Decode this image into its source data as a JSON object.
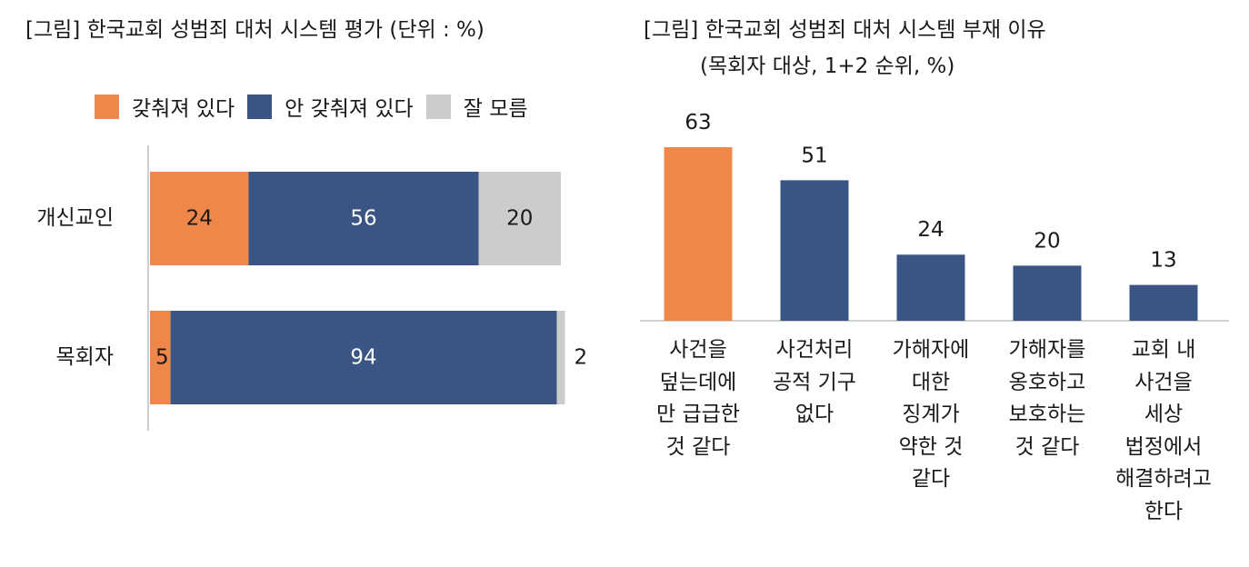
{
  "left_chart": {
    "title": "[그림] 한국교회 성범죄 대처 시스템 평가 (단위 : %)",
    "legend": [
      {
        "label": "갖춰져 있다",
        "color": "#F0874A"
      },
      {
        "label": "안 갖춰져 있다",
        "color": "#3A5584"
      },
      {
        "label": "잘 모름",
        "color": "#CCCCCC"
      }
    ]
  },
  "right_chart": {
    "title": "[그림] 한국교회 성범죄 대처 시스템 부재 이유",
    "subtitle": "(목회자 대상, 1+2 순위, %)"
  },
  "chart_data": [
    {
      "type": "bar",
      "orientation": "horizontal",
      "stacked": true,
      "title": "[그림] 한국교회 성범죄 대처 시스템 평가 (단위 : %)",
      "categories": [
        "개신교인",
        "목회자"
      ],
      "series": [
        {
          "name": "갖춰져 있다",
          "values": [
            24,
            5
          ],
          "color": "#F0874A"
        },
        {
          "name": "안 갖춰져 있다",
          "values": [
            56,
            94
          ],
          "color": "#3A5584"
        },
        {
          "name": "잘 모름",
          "values": [
            20,
            2
          ],
          "color": "#CCCCCC"
        }
      ],
      "xlim": [
        0,
        100
      ],
      "legend": "top",
      "grid": false
    },
    {
      "type": "bar",
      "title": "[그림] 한국교회 성범죄 대처 시스템 부재 이유",
      "subtitle": "(목회자 대상, 1+2 순위, %)",
      "categories": [
        "사건을\n덮는데에\n만 급급한\n것 같다",
        "사건처리\n공적 기구\n없다",
        "가해자에\n대한\n징계가\n약한 것\n같다",
        "가해자를\n옹호하고\n보호하는\n것 같다",
        "교회 내\n사건을\n세상\n법정에서\n해결하려고\n한다"
      ],
      "values": [
        63,
        51,
        24,
        20,
        13
      ],
      "colors": [
        "#F0874A",
        "#3A5584",
        "#3A5584",
        "#3A5584",
        "#3A5584"
      ],
      "ylim": [
        0,
        63
      ],
      "grid": false
    }
  ]
}
